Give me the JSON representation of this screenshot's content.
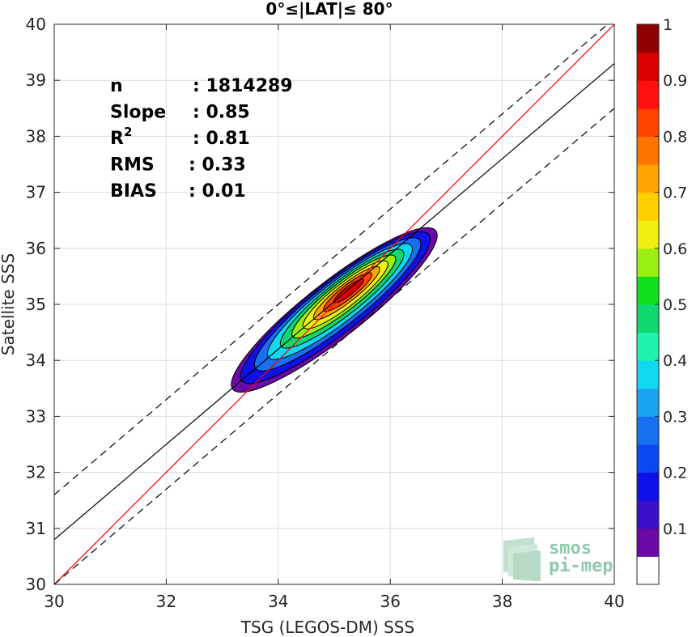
{
  "chart_data": {
    "type": "contour",
    "title": "0°≤|LAT|≤ 80°",
    "xlabel": "TSG (LEGOS-DM) SSS",
    "ylabel": "Satellite SSS",
    "xlim": [
      30,
      40
    ],
    "ylim": [
      30,
      40
    ],
    "xticks": [
      30,
      32,
      34,
      36,
      38,
      40
    ],
    "yticks": [
      30,
      31,
      32,
      33,
      34,
      35,
      36,
      37,
      38,
      39,
      40
    ],
    "grid": true,
    "stats": [
      {
        "label": "n",
        "value": ": 1814289"
      },
      {
        "label": "Slope",
        "value": ": 0.85"
      },
      {
        "label": "R",
        "sup": "2",
        "value": ": 0.81"
      },
      {
        "label": "RMS",
        "value": ": 0.33"
      },
      {
        "label": "BIAS",
        "value": ": 0.01"
      }
    ],
    "lines": [
      {
        "name": "identity",
        "color": "#ff0000",
        "style": "solid",
        "slope": 1.0,
        "intercept": 0.0
      },
      {
        "name": "regression",
        "color": "#000000",
        "style": "solid",
        "slope": 0.85,
        "intercept": 5.3
      },
      {
        "name": "upper-bound",
        "color": "#000000",
        "style": "dashed",
        "slope": 0.85,
        "intercept": 6.1
      },
      {
        "name": "lower-bound",
        "color": "#000000",
        "style": "dashed",
        "slope": 0.85,
        "intercept": 4.5
      }
    ],
    "density": {
      "center": [
        35.2,
        35.2
      ],
      "angle_deg": 38,
      "levels": [
        0.05,
        0.1,
        0.2,
        0.3,
        0.4,
        0.5,
        0.6,
        0.7,
        0.8,
        0.9
      ],
      "semi_major": [
        2.3,
        2.12,
        1.86,
        1.62,
        1.38,
        1.16,
        0.95,
        0.74,
        0.54,
        0.33
      ],
      "semi_minor": [
        0.5,
        0.46,
        0.4,
        0.35,
        0.3,
        0.25,
        0.21,
        0.16,
        0.12,
        0.075
      ],
      "offsets": [
        [
          -0.2,
          -0.3
        ],
        [
          -0.18,
          -0.26
        ],
        [
          -0.14,
          -0.2
        ],
        [
          -0.1,
          -0.15
        ],
        [
          -0.06,
          -0.1
        ],
        [
          -0.03,
          -0.06
        ],
        [
          0,
          -0.03
        ],
        [
          0.02,
          0
        ],
        [
          0.04,
          0.02
        ],
        [
          0.06,
          0.04
        ]
      ]
    },
    "colorbar": {
      "range": [
        0,
        1
      ],
      "ticks": [
        0.1,
        0.2,
        0.3,
        0.4,
        0.5,
        0.6,
        0.7,
        0.8,
        0.9,
        1
      ],
      "tick_labels": [
        "0.1",
        "0.2",
        "0.3",
        "0.4",
        "0.5",
        "0.6",
        "0.7",
        "0.8",
        "0.9",
        "1"
      ],
      "colors": [
        "#ffffff",
        "#6a0aa8",
        "#3a10c8",
        "#1010e8",
        "#0a48f0",
        "#1870f0",
        "#1aa4f0",
        "#10d8f0",
        "#20f0b0",
        "#10d870",
        "#10e020",
        "#9af010",
        "#f0f010",
        "#ffd000",
        "#ffa400",
        "#ff7400",
        "#ff4400",
        "#ff1010",
        "#d80000",
        "#900000"
      ]
    },
    "logo": {
      "line1": "smos",
      "line2": "pi-mep"
    }
  }
}
